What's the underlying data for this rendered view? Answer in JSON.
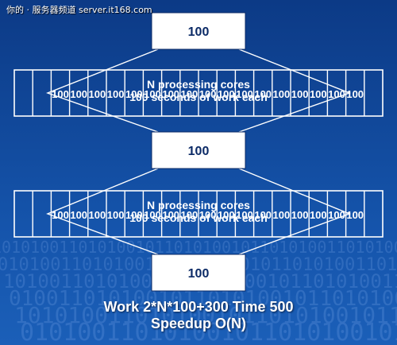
{
  "watermark": "你的 · 服务器频道 server.it168.com",
  "colors": {
    "background_top": "#0c3a86",
    "background_bottom": "#1b5fb8",
    "box_fill": "#ffffff",
    "box_text": "#0b2a66",
    "outline": "#ffffff"
  },
  "serial_boxes": [
    {
      "label": "100"
    },
    {
      "label": "100"
    },
    {
      "label": "100"
    }
  ],
  "parallel_rows": [
    {
      "cores_label": "N processing cores",
      "work_label": "100 seconds of work each",
      "cell_label": "100",
      "cell_count": 20
    },
    {
      "cores_label": "N processing cores",
      "work_label": "100 seconds of work each",
      "cell_label": "100",
      "cell_count": 20
    }
  ],
  "caption": {
    "line1": "Work 2*N*100+300 Time 500",
    "line2": "Speedup O(N)"
  }
}
